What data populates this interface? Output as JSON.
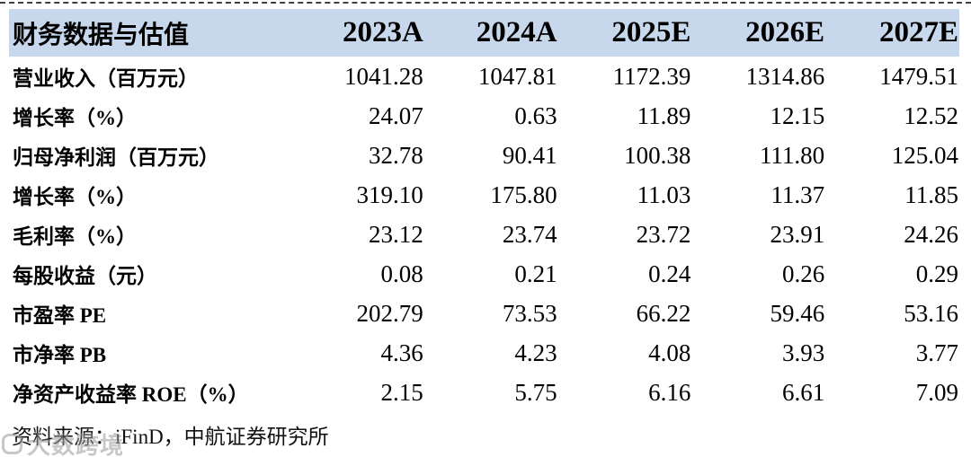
{
  "colors": {
    "header_bg": "#c8d8ec",
    "page_bg": "#ffffff",
    "text": "#000000",
    "top_divider": "#3f3f3f",
    "watermark": "#9a9a9a"
  },
  "table": {
    "header": {
      "label": "财务数据与估值",
      "columns": [
        "2023A",
        "2024A",
        "2025E",
        "2026E",
        "2027E"
      ]
    },
    "rows": [
      {
        "label": "营业收入（百万元）",
        "values": [
          "1041.28",
          "1047.81",
          "1172.39",
          "1314.86",
          "1479.51"
        ]
      },
      {
        "label": "增长率（%）",
        "values": [
          "24.07",
          "0.63",
          "11.89",
          "12.15",
          "12.52"
        ]
      },
      {
        "label": "归母净利润（百万元）",
        "values": [
          "32.78",
          "90.41",
          "100.38",
          "111.80",
          "125.04"
        ]
      },
      {
        "label": "增长率（%）",
        "values": [
          "319.10",
          "175.80",
          "11.03",
          "11.37",
          "11.85"
        ]
      },
      {
        "label": "毛利率（%）",
        "values": [
          "23.12",
          "23.74",
          "23.72",
          "23.91",
          "24.26"
        ]
      },
      {
        "label": "每股收益（元）",
        "values": [
          "0.08",
          "0.21",
          "0.24",
          "0.26",
          "0.29"
        ]
      },
      {
        "label": "市盈率 PE",
        "values": [
          "202.79",
          "73.53",
          "66.22",
          "59.46",
          "53.16"
        ]
      },
      {
        "label": "市净率 PB",
        "values": [
          "4.36",
          "4.23",
          "4.08",
          "3.93",
          "3.77"
        ]
      },
      {
        "label": "净资产收益率 ROE（%）",
        "values": [
          "2.15",
          "5.75",
          "6.16",
          "6.61",
          "7.09"
        ]
      }
    ]
  },
  "footer": {
    "source": "资料来源：iFinD，中航证券研究所"
  },
  "watermark": {
    "text": "大数跨境"
  }
}
